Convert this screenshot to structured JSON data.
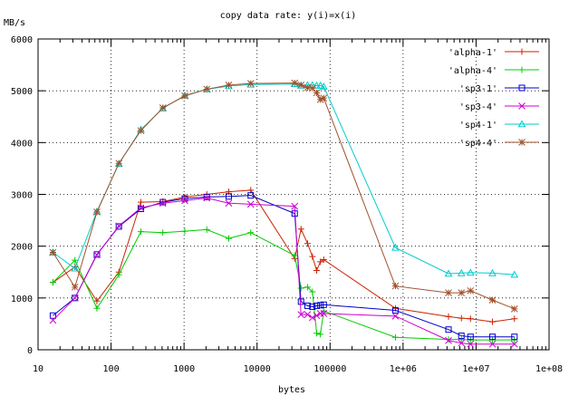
{
  "chart_data": {
    "type": "line",
    "title": "copy data rate: y(i)=x(i)",
    "xlabel": "bytes",
    "ylabel": "MB/s",
    "xscale": "log",
    "xlim": [
      10,
      100000000
    ],
    "ylim": [
      0,
      6000
    ],
    "grid": true,
    "legend_position": "top-right",
    "x_tick_labels": [
      "10",
      "100",
      "1000",
      "10000",
      "100000",
      "1e+06",
      "1e+07",
      "1e+08"
    ],
    "y_ticks": [
      0,
      1000,
      2000,
      3000,
      4000,
      5000,
      6000
    ],
    "y_tick_labels": [
      "0",
      "1000",
      "2000",
      "3000",
      "4000",
      "5000",
      "6000"
    ],
    "series": [
      {
        "name": "'alpha-1'",
        "color": "#cc2200",
        "marker": "plus",
        "x": [
          16,
          32,
          64,
          128,
          256,
          512,
          1024,
          2048,
          4096,
          8192,
          32768,
          40000,
          49152,
          57344,
          65536,
          73728,
          81920,
          786432,
          4194304,
          6291456,
          8388608,
          16777216,
          33554432
        ],
        "y": [
          1300,
          1600,
          940,
          1500,
          2850,
          2860,
          2950,
          3000,
          3050,
          3080,
          1760,
          2330,
          2050,
          1800,
          1530,
          1700,
          1740,
          800,
          640,
          610,
          600,
          540,
          600
        ]
      },
      {
        "name": "'alpha-4'",
        "color": "#00cc00",
        "marker": "plus",
        "x": [
          16,
          32,
          64,
          128,
          256,
          512,
          1024,
          2048,
          4096,
          8192,
          32768,
          40000,
          49152,
          57344,
          65536,
          73728,
          81920,
          786432,
          4194304,
          6291456,
          8388608,
          16777216,
          33554432
        ],
        "y": [
          1300,
          1730,
          800,
          1450,
          2280,
          2260,
          2290,
          2320,
          2150,
          2260,
          1820,
          1190,
          1210,
          1120,
          320,
          300,
          750,
          240,
          200,
          200,
          190,
          190,
          190
        ]
      },
      {
        "name": "'sp3-1'",
        "color": "#0000cc",
        "marker": "square",
        "x": [
          16,
          32,
          64,
          128,
          256,
          512,
          1024,
          2048,
          4096,
          8192,
          32768,
          40000,
          49152,
          57344,
          65536,
          73728,
          81920,
          786432,
          4194304,
          6291456,
          8388608,
          16777216,
          33554432
        ],
        "y": [
          660,
          1000,
          1840,
          2380,
          2720,
          2850,
          2920,
          2950,
          2960,
          2980,
          2630,
          930,
          850,
          830,
          850,
          860,
          870,
          760,
          390,
          270,
          250,
          250,
          250
        ]
      },
      {
        "name": "'sp3-4'",
        "color": "#cc00cc",
        "marker": "x",
        "x": [
          16,
          32,
          64,
          128,
          256,
          512,
          1024,
          2048,
          4096,
          8192,
          32768,
          40000,
          49152,
          57344,
          65536,
          73728,
          81920,
          786432,
          4194304,
          6291456,
          8388608,
          16777216,
          33554432
        ],
        "y": [
          570,
          1000,
          1830,
          2390,
          2740,
          2830,
          2880,
          2930,
          2830,
          2810,
          2770,
          680,
          680,
          620,
          660,
          700,
          700,
          650,
          180,
          130,
          110,
          110,
          110
        ]
      },
      {
        "name": "'sp4-1'",
        "color": "#00cccc",
        "marker": "triangle",
        "x": [
          16,
          32,
          64,
          128,
          256,
          512,
          1024,
          2048,
          4096,
          8192,
          32768,
          40000,
          49152,
          57344,
          65536,
          73728,
          81920,
          786432,
          4194304,
          6291456,
          8388608,
          16777216,
          33554432
        ],
        "y": [
          1880,
          1570,
          2670,
          3590,
          4250,
          4660,
          4910,
          5030,
          5090,
          5120,
          5130,
          5100,
          5110,
          5110,
          5100,
          5100,
          5080,
          1970,
          1470,
          1480,
          1490,
          1480,
          1450
        ]
      },
      {
        "name": "'sp4-4'",
        "color": "#a0522d",
        "marker": "star",
        "x": [
          16,
          32,
          64,
          128,
          256,
          512,
          1024,
          2048,
          4096,
          8192,
          32768,
          40000,
          49152,
          57344,
          65536,
          73728,
          81920,
          786432,
          4194304,
          6291456,
          8388608,
          16777216,
          33554432
        ],
        "y": [
          1880,
          1210,
          2660,
          3600,
          4230,
          4670,
          4900,
          5030,
          5110,
          5140,
          5150,
          5110,
          5060,
          5050,
          4960,
          4830,
          4860,
          1230,
          1100,
          1100,
          1140,
          960,
          790
        ]
      }
    ]
  }
}
